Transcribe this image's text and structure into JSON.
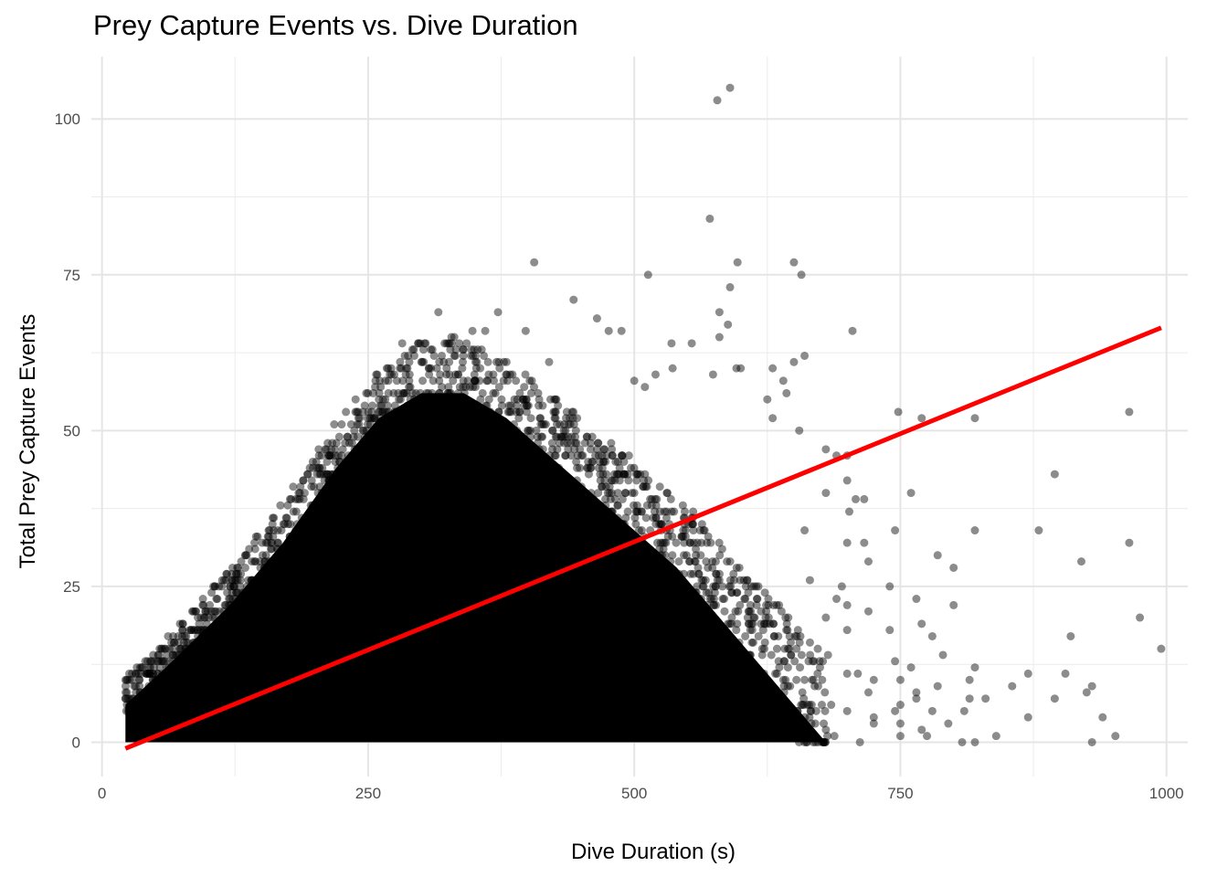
{
  "chart_data": {
    "type": "scatter",
    "title": "Prey Capture Events vs. Dive Duration",
    "xlabel": "Dive Duration (s)",
    "ylabel": "Total Prey Capture Events",
    "xlim": [
      -10,
      1020
    ],
    "ylim": [
      -5.5,
      110
    ],
    "x_ticks": [
      0,
      250,
      500,
      750,
      1000
    ],
    "x_tick_labels": [
      "0",
      "250",
      "500",
      "750",
      "1000"
    ],
    "y_ticks": [
      0,
      25,
      50,
      75,
      100
    ],
    "y_tick_labels": [
      "0",
      "25",
      "50",
      "75",
      "100"
    ],
    "grid": true,
    "point_color": "#000000",
    "point_opacity": 0.45,
    "fit_line": {
      "color": "#ff0000",
      "x": [
        22,
        995
      ],
      "y": [
        -1,
        66.5
      ]
    },
    "dense_region": {
      "x_range": [
        22,
        700
      ],
      "y_range": [
        0,
        60
      ],
      "note_points": "large overplotted cloud; representative points below"
    },
    "points": [
      [
        590,
        105
      ],
      [
        578,
        103
      ],
      [
        571,
        84
      ],
      [
        406,
        77
      ],
      [
        597,
        77
      ],
      [
        650,
        77
      ],
      [
        513,
        75
      ],
      [
        657,
        75
      ],
      [
        590,
        73
      ],
      [
        443,
        71
      ],
      [
        316,
        69
      ],
      [
        372,
        69
      ],
      [
        580,
        69
      ],
      [
        588,
        67
      ],
      [
        465,
        68
      ],
      [
        488,
        66
      ],
      [
        476,
        66
      ],
      [
        705,
        66
      ],
      [
        398,
        66
      ],
      [
        360,
        66
      ],
      [
        348,
        66
      ],
      [
        304,
        64
      ],
      [
        282,
        64
      ],
      [
        535,
        64
      ],
      [
        554,
        64
      ],
      [
        580,
        65
      ],
      [
        650,
        61
      ],
      [
        420,
        61
      ],
      [
        380,
        61
      ],
      [
        600,
        60
      ],
      [
        660,
        62
      ],
      [
        630,
        60
      ],
      [
        536,
        60
      ],
      [
        520,
        59
      ],
      [
        596,
        60
      ],
      [
        574,
        59
      ],
      [
        500,
        58
      ],
      [
        510,
        57
      ],
      [
        640,
        58
      ],
      [
        643,
        56
      ],
      [
        625,
        55
      ],
      [
        630,
        52
      ],
      [
        770,
        52
      ],
      [
        820,
        52
      ],
      [
        748,
        53
      ],
      [
        965,
        53
      ],
      [
        655,
        50
      ],
      [
        680,
        47
      ],
      [
        700,
        46
      ],
      [
        690,
        46
      ],
      [
        700,
        42
      ],
      [
        760,
        40
      ],
      [
        680,
        40
      ],
      [
        708,
        39
      ],
      [
        716,
        39
      ],
      [
        702,
        37
      ],
      [
        660,
        34
      ],
      [
        745,
        34
      ],
      [
        820,
        34
      ],
      [
        880,
        34
      ],
      [
        895,
        43
      ],
      [
        965,
        32
      ],
      [
        700,
        32
      ],
      [
        716,
        32
      ],
      [
        785,
        30
      ],
      [
        800,
        28
      ],
      [
        920,
        29
      ],
      [
        720,
        29
      ],
      [
        665,
        26
      ],
      [
        695,
        25
      ],
      [
        740,
        25
      ],
      [
        690,
        23
      ],
      [
        765,
        23
      ],
      [
        700,
        22
      ],
      [
        720,
        21
      ],
      [
        800,
        22
      ],
      [
        975,
        20
      ],
      [
        770,
        19
      ],
      [
        700,
        18
      ],
      [
        680,
        20
      ],
      [
        740,
        18
      ],
      [
        780,
        17
      ],
      [
        910,
        17
      ],
      [
        995,
        15
      ],
      [
        745,
        13
      ],
      [
        790,
        14
      ],
      [
        700,
        11
      ],
      [
        710,
        11
      ],
      [
        760,
        12
      ],
      [
        725,
        10
      ],
      [
        660,
        10
      ],
      [
        820,
        12
      ],
      [
        870,
        11
      ],
      [
        905,
        11
      ],
      [
        815,
        10
      ],
      [
        750,
        10
      ],
      [
        720,
        8
      ],
      [
        765,
        8
      ],
      [
        785,
        9
      ],
      [
        815,
        7
      ],
      [
        855,
        9
      ],
      [
        895,
        7
      ],
      [
        930,
        9
      ],
      [
        925,
        8
      ],
      [
        750,
        6
      ],
      [
        765,
        7
      ],
      [
        810,
        5
      ],
      [
        830,
        7
      ],
      [
        685,
        6
      ],
      [
        700,
        5
      ],
      [
        725,
        4
      ],
      [
        745,
        5
      ],
      [
        780,
        5
      ],
      [
        795,
        3
      ],
      [
        725,
        3
      ],
      [
        750,
        3
      ],
      [
        870,
        4
      ],
      [
        940,
        4
      ],
      [
        750,
        1
      ],
      [
        770,
        2
      ],
      [
        775,
        1
      ],
      [
        808,
        0
      ],
      [
        820,
        0
      ],
      [
        840,
        1
      ],
      [
        930,
        0
      ],
      [
        952,
        1
      ],
      [
        712,
        0
      ],
      [
        688,
        1
      ],
      [
        680,
        2
      ],
      [
        660,
        2
      ]
    ]
  }
}
